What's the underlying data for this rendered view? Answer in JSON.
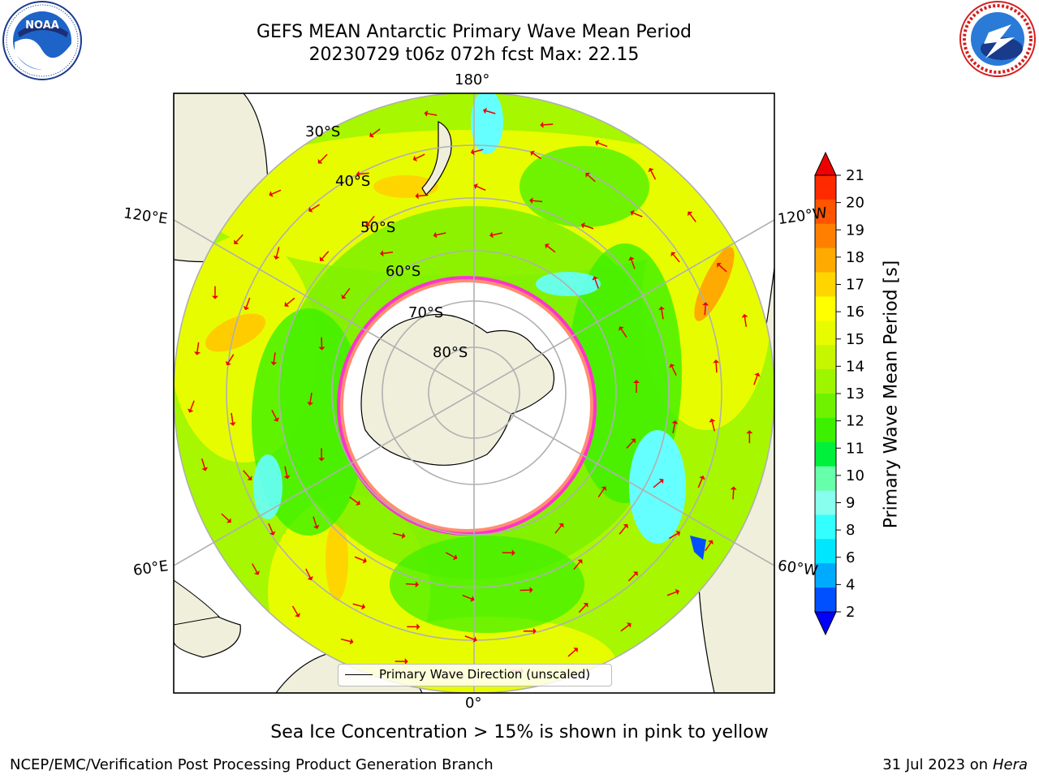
{
  "header": {
    "title_line1": "GEFS MEAN Antarctic Primary Wave Mean Period",
    "title_line2": "20230729 t06z 072h fcst   Max: 22.15"
  },
  "logos": {
    "noaa_text": "NOAA",
    "noaa_ring_text": "NATIONAL OCEANIC AND ATMOSPHERIC ADMINISTRATION • U.S. DEPARTMENT OF COMMERCE",
    "nws_ring_text": "NATIONAL WEATHER SERVICE"
  },
  "map": {
    "longitude_labels": {
      "top": "180°",
      "bottom": "0°",
      "left_upper": "120°E",
      "left_lower": "60°E",
      "right_upper": "120°W",
      "right_lower": "60°W"
    },
    "latitude_labels": [
      "30°S",
      "40°S",
      "50°S",
      "60°S",
      "70°S",
      "80°S"
    ],
    "legend_label": "Primary Wave Direction (unscaled)",
    "colors": {
      "ocean_main": "#7cf000",
      "ocean_high": "#e8fc00",
      "ocean_low": "#2cf000",
      "ice_sea": "#ff33cc",
      "ice_edge": "#ffcc33",
      "land": "#efefdc",
      "arrow": "#ee0000"
    }
  },
  "colorbar": {
    "label": "Primary Wave Mean Period [s]",
    "ticks": [
      "21",
      "20",
      "19",
      "18",
      "17",
      "16",
      "15",
      "14",
      "13",
      "12",
      "11",
      "10",
      "9",
      "8",
      "6",
      "4",
      "2"
    ],
    "colors": [
      "#ff2a00",
      "#ff5500",
      "#ff8000",
      "#ffaa00",
      "#ffd500",
      "#ffff00",
      "#e8fc00",
      "#c6f700",
      "#9ef500",
      "#6ef200",
      "#3cf000",
      "#00f03c",
      "#66ffaa",
      "#88ffee",
      "#33ffff",
      "#00e6ff",
      "#00aaff",
      "#0050ff"
    ],
    "extend_top_color": "#ee0000",
    "extend_bottom_color": "#0000ff"
  },
  "caption": "Sea Ice Concentration > 15% is shown in pink to yellow",
  "footer": {
    "left": "NCEP/EMC/Verification Post Processing Product Generation Branch",
    "right_date": "31 Jul 2023 on ",
    "right_host": "Hera"
  }
}
